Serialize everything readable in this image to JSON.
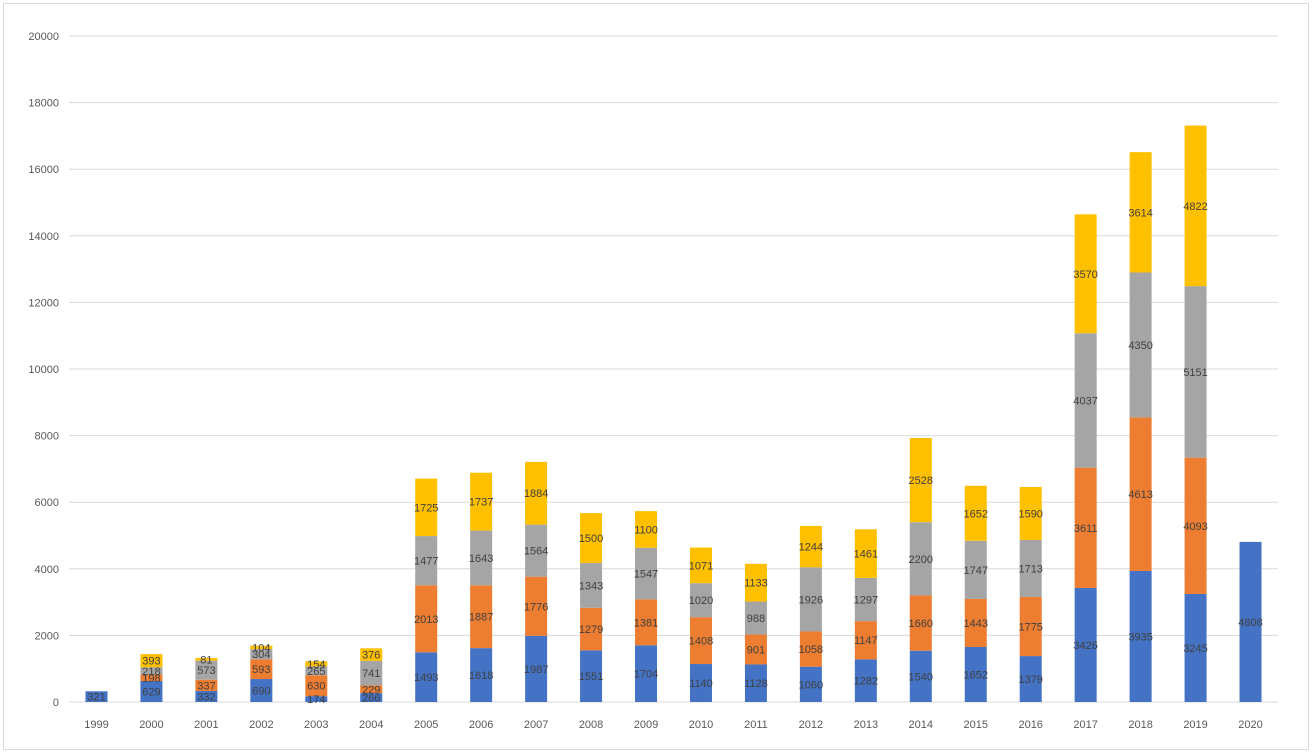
{
  "chart_data": {
    "type": "bar",
    "stacked": true,
    "title": "",
    "xlabel": "",
    "ylabel": "",
    "ylim": [
      0,
      20000
    ],
    "yticks": [
      0,
      2000,
      4000,
      6000,
      8000,
      10000,
      12000,
      14000,
      16000,
      18000,
      20000
    ],
    "grid": true,
    "legend": "none",
    "categories": [
      "1999",
      "2000",
      "2001",
      "2002",
      "2003",
      "2004",
      "2005",
      "2006",
      "2007",
      "2008",
      "2009",
      "2010",
      "2011",
      "2012",
      "2013",
      "2014",
      "2015",
      "2016",
      "2017",
      "2018",
      "2019",
      "2020"
    ],
    "series": [
      {
        "color": "#4472c4",
        "values": [
          321,
          629,
          332,
          690,
          174,
          266,
          1493,
          1618,
          1987,
          1551,
          1704,
          1140,
          1128,
          1060,
          1282,
          1540,
          1652,
          1379,
          3426,
          3935,
          3245,
          4808
        ]
      },
      {
        "color": "#ed7d31",
        "values": [
          0,
          198,
          337,
          593,
          630,
          229,
          2013,
          1887,
          1776,
          1279,
          1381,
          1408,
          901,
          1058,
          1147,
          1660,
          1443,
          1775,
          3611,
          4613,
          4093,
          0
        ]
      },
      {
        "color": "#a5a5a5",
        "values": [
          0,
          218,
          573,
          304,
          265,
          741,
          1477,
          1643,
          1564,
          1343,
          1547,
          1020,
          988,
          1926,
          1297,
          2200,
          1747,
          1713,
          4037,
          4350,
          5151,
          0
        ]
      },
      {
        "color": "#ffc000",
        "values": [
          0,
          393,
          81,
          104,
          154,
          376,
          1725,
          1737,
          1884,
          1500,
          1100,
          1071,
          1133,
          1244,
          1461,
          2528,
          1652,
          1590,
          3570,
          3614,
          4822,
          0
        ]
      }
    ]
  }
}
